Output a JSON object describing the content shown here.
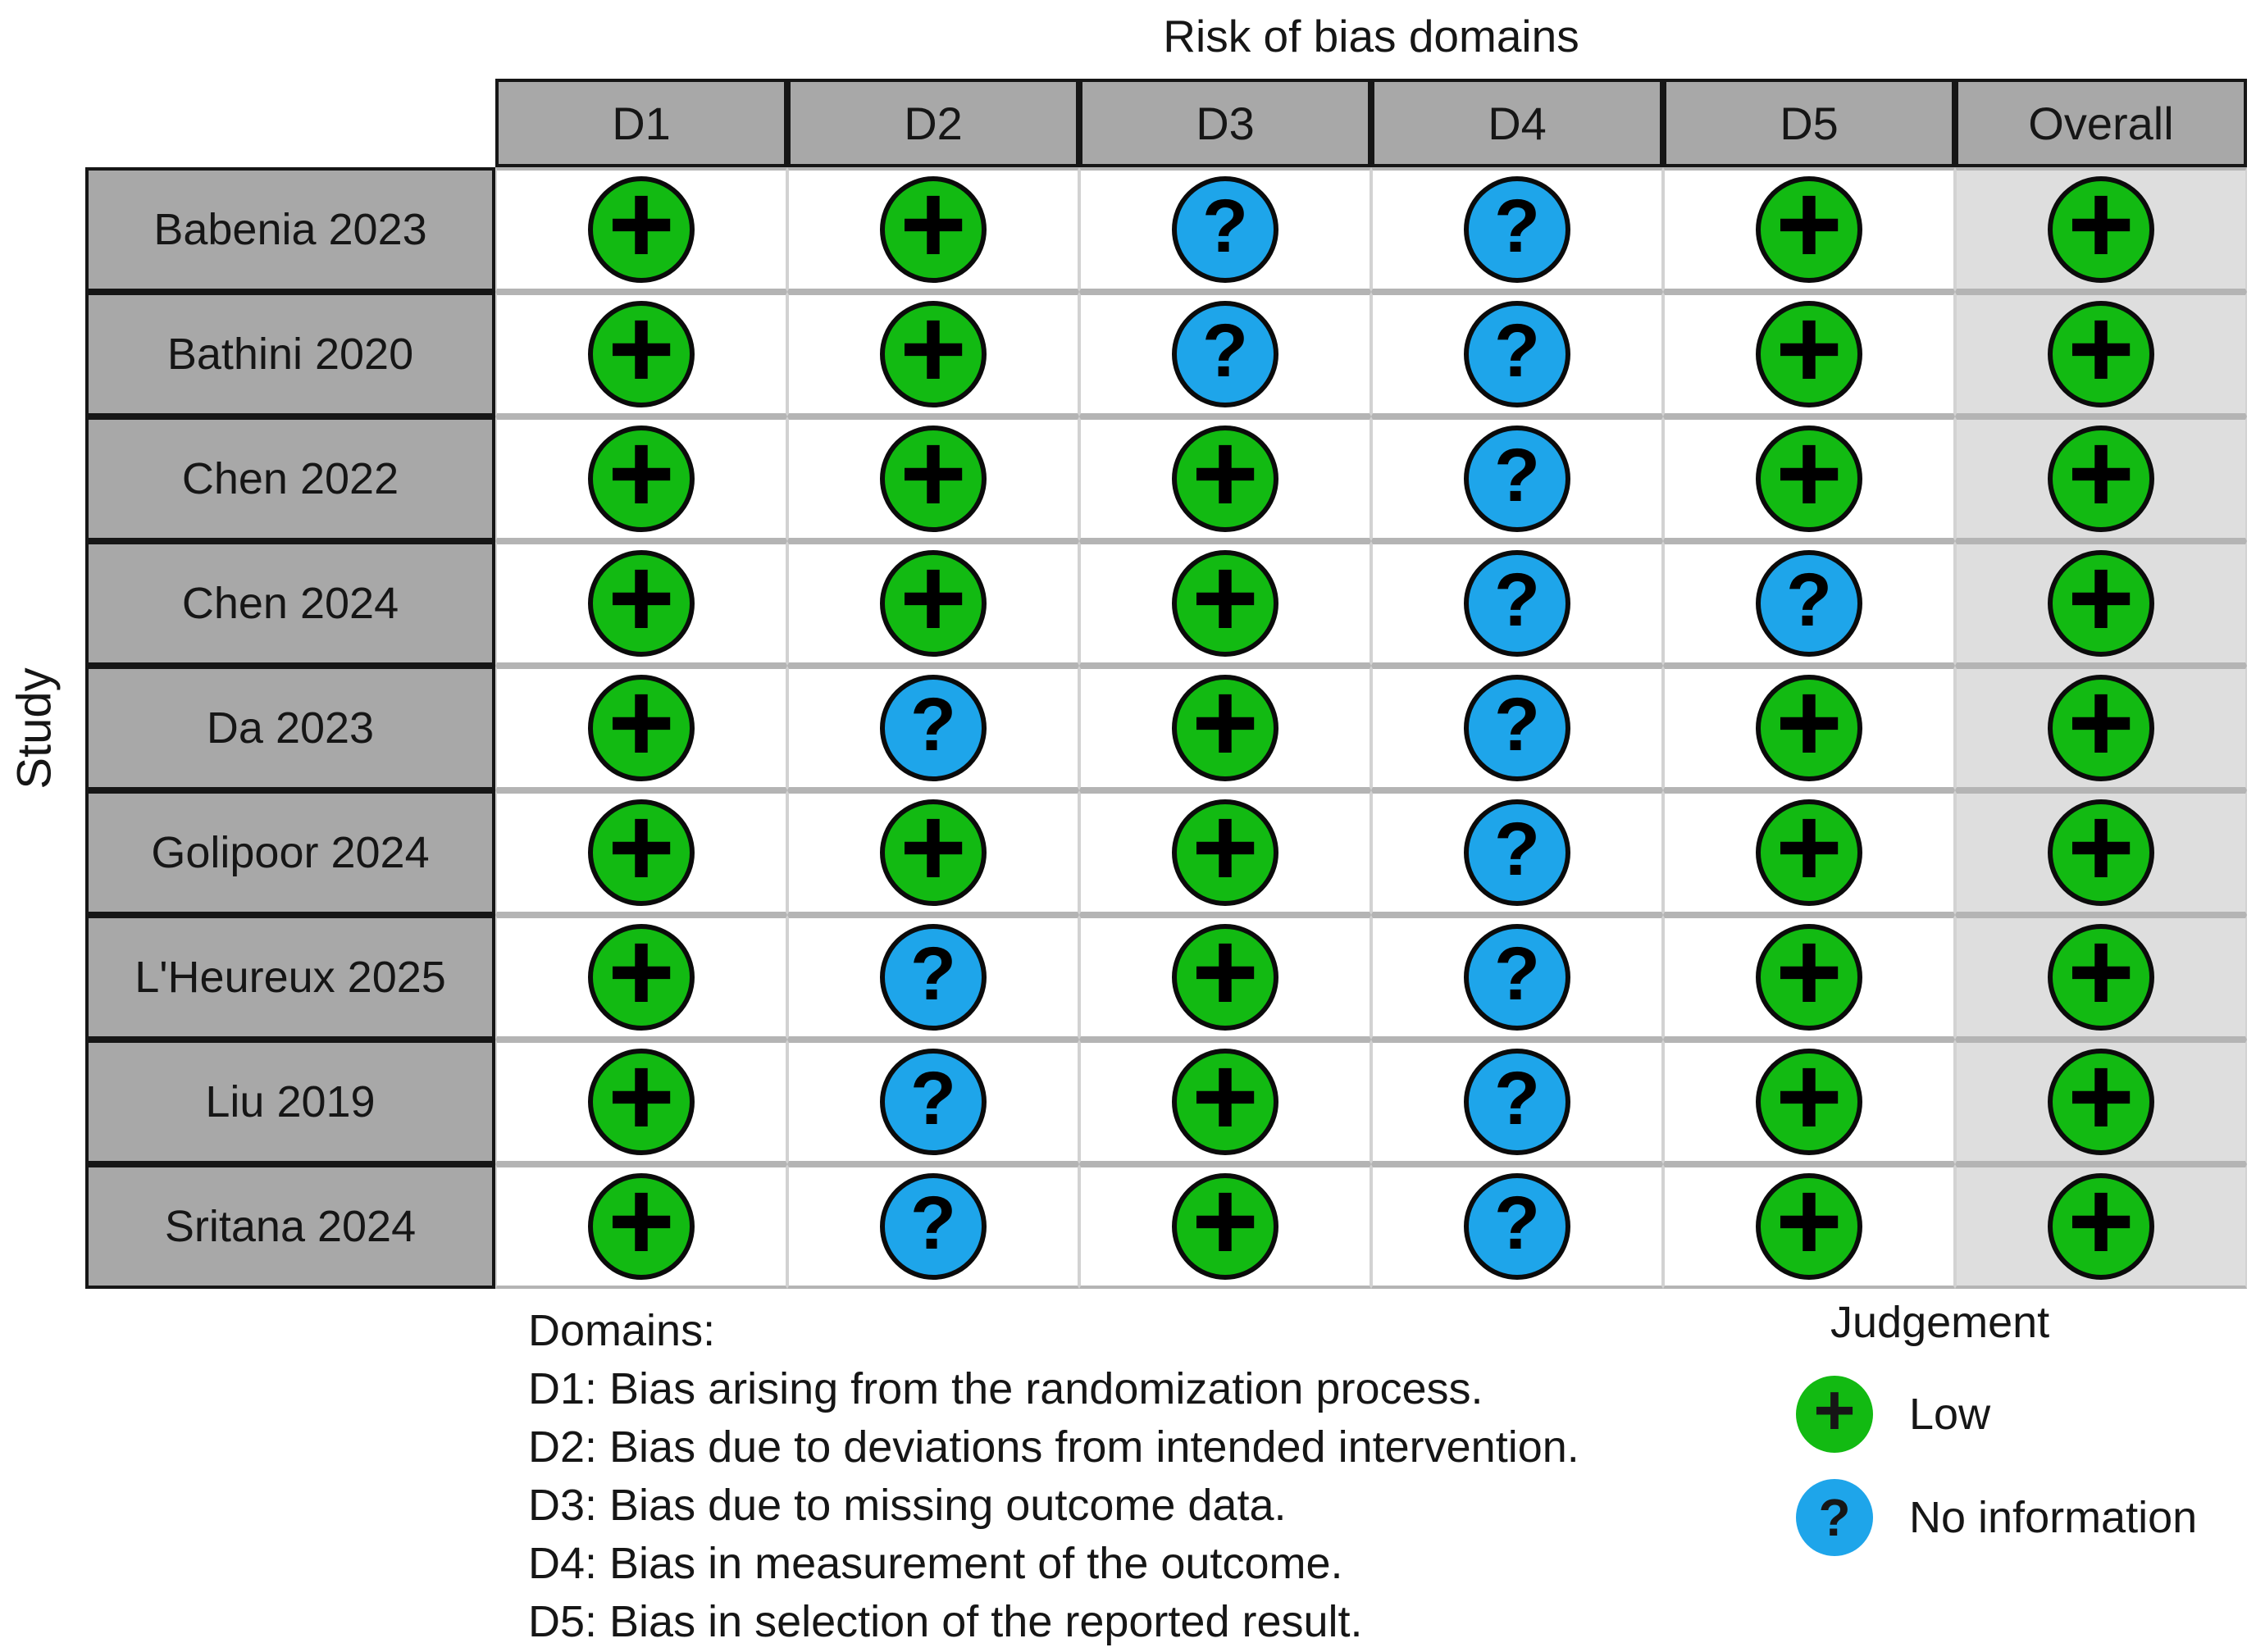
{
  "chart_data": {
    "type": "table",
    "title": "Risk of bias domains",
    "y_axis_label": "Study",
    "columns": [
      "D1",
      "D2",
      "D3",
      "D4",
      "D5",
      "Overall"
    ],
    "judgement_types": {
      "low": {
        "label": "Low",
        "symbol": "+",
        "color": "#12ba12"
      },
      "no_information": {
        "label": "No information",
        "symbol": "?",
        "color": "#1ea5ea"
      }
    },
    "rows": [
      {
        "study": "Babenia 2023",
        "judgements": [
          "low",
          "low",
          "no_information",
          "no_information",
          "low",
          "low"
        ]
      },
      {
        "study": "Bathini 2020",
        "judgements": [
          "low",
          "low",
          "no_information",
          "no_information",
          "low",
          "low"
        ]
      },
      {
        "study": "Chen 2022",
        "judgements": [
          "low",
          "low",
          "low",
          "no_information",
          "low",
          "low"
        ]
      },
      {
        "study": "Chen 2024",
        "judgements": [
          "low",
          "low",
          "low",
          "no_information",
          "no_information",
          "low"
        ]
      },
      {
        "study": "Da 2023",
        "judgements": [
          "low",
          "no_information",
          "low",
          "no_information",
          "low",
          "low"
        ]
      },
      {
        "study": "Golipoor 2024",
        "judgements": [
          "low",
          "low",
          "low",
          "no_information",
          "low",
          "low"
        ]
      },
      {
        "study": "L'Heureux 2025",
        "judgements": [
          "low",
          "no_information",
          "low",
          "no_information",
          "low",
          "low"
        ]
      },
      {
        "study": "Liu 2019",
        "judgements": [
          "low",
          "no_information",
          "low",
          "no_information",
          "low",
          "low"
        ]
      },
      {
        "study": "Sritana 2024",
        "judgements": [
          "low",
          "no_information",
          "low",
          "no_information",
          "low",
          "low"
        ]
      }
    ],
    "legend": {
      "title": "Judgement",
      "items": [
        "low",
        "no_information"
      ]
    },
    "domains_note": {
      "heading": "Domains:",
      "lines": [
        "D1: Bias arising from the randomization process.",
        "D2: Bias due to deviations from intended intervention.",
        "D3: Bias due to missing outcome data.",
        "D4: Bias in measurement of the outcome.",
        "D5: Bias in selection of the reported result."
      ]
    },
    "colors": {
      "header_bg": "#a8a8a8",
      "overall_cell_bg": "#dedede",
      "row_line": "#b4b4b4",
      "column_line": "#d2d2d2",
      "table_border": "#161616"
    }
  }
}
